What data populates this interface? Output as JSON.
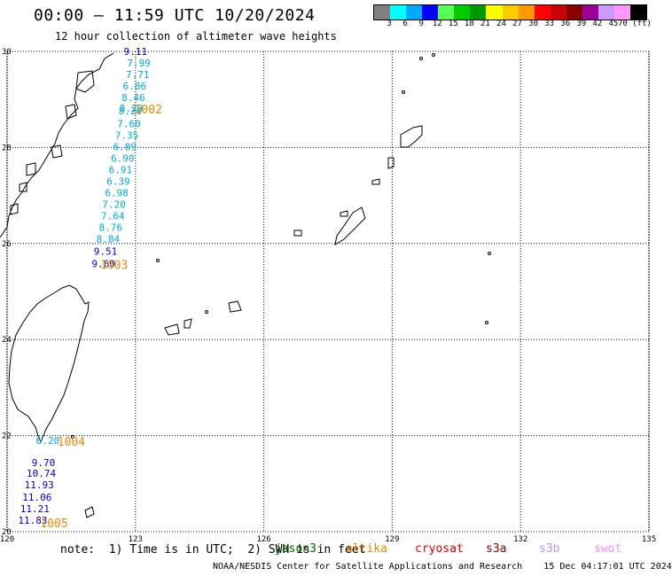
{
  "header": {
    "title": "00:00 – 11:59 UTC 10/20/2024",
    "subtitle": "12 hour collection of altimeter wave heights"
  },
  "colorbar": {
    "swatches": [
      "#808080",
      "#00ffff",
      "#00aaff",
      "#0000ff",
      "#55ff55",
      "#00cc00",
      "#009900",
      "#ffff00",
      "#ffcc00",
      "#ff9900",
      "#ff0000",
      "#cc0000",
      "#880000",
      "#990099",
      "#cc99ff",
      "#ff99ff",
      "#000000"
    ],
    "labels": [
      "3",
      "6",
      "9",
      "12",
      "15",
      "18",
      "21",
      "24",
      "27",
      "30",
      "33",
      "36",
      "39",
      "42",
      "45",
      "70 (ft)"
    ]
  },
  "axes": {
    "x_ticks": [
      "120",
      "123",
      "126",
      "129",
      "132",
      "135"
    ],
    "y_ticks": [
      "30",
      "28",
      "26",
      "24",
      "22",
      "20"
    ]
  },
  "observations": [
    {
      "lon": 123.0,
      "lat": 30.0,
      "value": "9.11",
      "color": "#0000cc"
    },
    {
      "lon": 123.08,
      "lat": 29.76,
      "value": "7.99",
      "color": "#00aadd"
    },
    {
      "lon": 123.05,
      "lat": 29.52,
      "value": "7.71",
      "color": "#00aadd"
    },
    {
      "lon": 122.98,
      "lat": 29.28,
      "value": "6.86",
      "color": "#00aadd"
    },
    {
      "lon": 122.95,
      "lat": 29.04,
      "value": "8.46",
      "color": "#00aadd"
    },
    {
      "lon": 122.9,
      "lat": 28.82,
      "value": "8.29",
      "color": "#00aadd"
    },
    {
      "lon": 122.88,
      "lat": 28.76,
      "value": "8.20",
      "color": "#00aadd"
    },
    {
      "lon": 122.85,
      "lat": 28.5,
      "value": "7.60",
      "color": "#00aadd"
    },
    {
      "lon": 122.8,
      "lat": 28.26,
      "value": "7.35",
      "color": "#00aadd"
    },
    {
      "lon": 122.75,
      "lat": 28.02,
      "value": "6.89",
      "color": "#00aadd"
    },
    {
      "lon": 122.7,
      "lat": 27.78,
      "value": "6.90",
      "color": "#00aadd"
    },
    {
      "lon": 122.65,
      "lat": 27.54,
      "value": "6.91",
      "color": "#00aadd"
    },
    {
      "lon": 122.6,
      "lat": 27.3,
      "value": "6.39",
      "color": "#00aadd"
    },
    {
      "lon": 122.56,
      "lat": 27.06,
      "value": "6.98",
      "color": "#00aadd"
    },
    {
      "lon": 122.5,
      "lat": 26.82,
      "value": "7.20",
      "color": "#00aadd"
    },
    {
      "lon": 122.47,
      "lat": 26.58,
      "value": "7.64",
      "color": "#00aadd"
    },
    {
      "lon": 122.42,
      "lat": 26.34,
      "value": "8.76",
      "color": "#00aadd"
    },
    {
      "lon": 122.36,
      "lat": 26.1,
      "value": "8.84",
      "color": "#00aadd"
    },
    {
      "lon": 122.3,
      "lat": 25.84,
      "value": "9.51",
      "color": "#0000cc"
    },
    {
      "lon": 122.25,
      "lat": 25.58,
      "value": "9.60",
      "color": "#0000cc"
    },
    {
      "lon": 120.95,
      "lat": 21.9,
      "value": "6.20",
      "color": "#00aadd"
    },
    {
      "lon": 120.85,
      "lat": 21.44,
      "value": "9.70",
      "color": "#0000cc"
    },
    {
      "lon": 120.8,
      "lat": 21.22,
      "value": "10.74",
      "color": "#0000cc"
    },
    {
      "lon": 120.75,
      "lat": 20.98,
      "value": "11.93",
      "color": "#0000cc"
    },
    {
      "lon": 120.7,
      "lat": 20.72,
      "value": "11.06",
      "color": "#0000cc"
    },
    {
      "lon": 120.65,
      "lat": 20.48,
      "value": "11.21",
      "color": "#0000cc"
    },
    {
      "lon": 120.6,
      "lat": 20.24,
      "value": "11.83",
      "color": "#0000cc"
    }
  ],
  "pass_times": [
    {
      "lon": 123.3,
      "lat": 28.8,
      "value": "1002",
      "color": "#ee8800"
    },
    {
      "lon": 122.5,
      "lat": 25.56,
      "value": "1003",
      "color": "#ee8800"
    },
    {
      "lon": 121.5,
      "lat": 21.88,
      "value": "1004",
      "color": "#ee8800"
    },
    {
      "lon": 121.1,
      "lat": 20.18,
      "value": "1005",
      "color": "#ee8800"
    }
  ],
  "footer": {
    "note": "note:  1) Time is in UTC;  2) SWH is in feet",
    "satellites": [
      {
        "name": "jason3",
        "color": "#006600"
      },
      {
        "name": "altika",
        "color": "#ee8800"
      },
      {
        "name": "cryosat",
        "color": "#dd0000"
      },
      {
        "name": "s3a",
        "color": "#880000"
      },
      {
        "name": "s3b",
        "color": "#bb99ee"
      },
      {
        "name": "swot",
        "color": "#ff88ff"
      }
    ],
    "credit": "NOAA/NESDIS Center for Satellite Applications and Research    15 Dec 04:17:01 UTC 2024"
  }
}
